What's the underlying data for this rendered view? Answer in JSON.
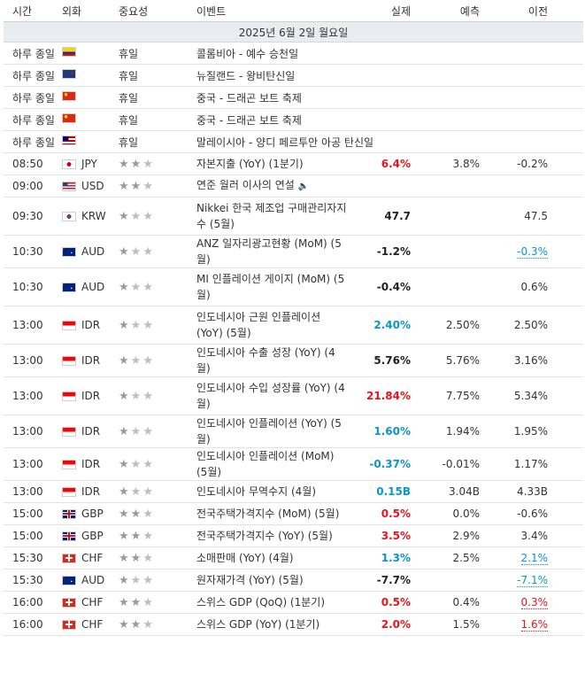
{
  "headers": {
    "time": "시간",
    "currency": "외화",
    "importance": "중요성",
    "event": "이벤트",
    "actual": "실제",
    "forecast": "예측",
    "previous": "이전"
  },
  "date_label": "2025년 6월 2일 월요일",
  "holidays": [
    {
      "time": "하루 종일",
      "flag": "colombia",
      "label": "휴일",
      "event": "콜롬비아 - 예수 승천일"
    },
    {
      "time": "하루 종일",
      "flag": "new-zealand",
      "label": "휴일",
      "event": "뉴질랜드 - 왕비탄신일"
    },
    {
      "time": "하루 종일",
      "flag": "china",
      "label": "휴일",
      "event": "중국 - 드래곤 보트 축제"
    },
    {
      "time": "하루 종일",
      "flag": "china",
      "label": "휴일",
      "event": "중국 - 드래곤 보트 축제"
    },
    {
      "time": "하루 종일",
      "flag": "malaysia",
      "label": "휴일",
      "event": "말레이시아 - 양디 페르투안 아공 탄신일"
    }
  ],
  "events": [
    {
      "time": "08:50",
      "flag": "japan",
      "currency": "JPY",
      "stars": 2,
      "event": "자본지출 (YoY) (1분기)",
      "actual": "6.4%",
      "actual_style": "pos",
      "forecast": "3.8%",
      "previous": "-0.2%",
      "prev_style": "",
      "speech": false
    },
    {
      "time": "09:00",
      "flag": "usa",
      "currency": "USD",
      "stars": 2,
      "event": "연준 월러 이사의 연설",
      "actual": "",
      "actual_style": "",
      "forecast": "",
      "previous": "",
      "prev_style": "",
      "speech": true
    },
    {
      "time": "09:30",
      "flag": "korea",
      "currency": "KRW",
      "stars": 1,
      "event": "Nikkei 한국 제조업 구매관리자지수 (5월)",
      "actual": "47.7",
      "actual_style": "neu",
      "forecast": "",
      "previous": "47.5",
      "prev_style": "",
      "speech": false
    },
    {
      "time": "10:30",
      "flag": "australia",
      "currency": "AUD",
      "stars": 1,
      "event": "ANZ 일자리광고현황 (MoM) (5월)",
      "actual": "-1.2%",
      "actual_style": "neu",
      "forecast": "",
      "previous": "-0.3%",
      "prev_style": "rev-b",
      "speech": false
    },
    {
      "time": "10:30",
      "flag": "australia",
      "currency": "AUD",
      "stars": 1,
      "event": "MI 인플레이션 게이지 (MoM) (5월)",
      "actual": "-0.4%",
      "actual_style": "neu",
      "forecast": "",
      "previous": "0.6%",
      "prev_style": "",
      "speech": false
    },
    {
      "time": "13:00",
      "flag": "indonesia",
      "currency": "IDR",
      "stars": 1,
      "event": "인도네시아 근원 인플레이션 (YoY) (5월)",
      "actual": "2.40%",
      "actual_style": "neg",
      "forecast": "2.50%",
      "previous": "2.50%",
      "prev_style": "",
      "speech": false
    },
    {
      "time": "13:00",
      "flag": "indonesia",
      "currency": "IDR",
      "stars": 1,
      "event": "인도네시아 수출 성장 (YoY) (4월)",
      "actual": "5.76%",
      "actual_style": "neu",
      "forecast": "5.76%",
      "previous": "3.16%",
      "prev_style": "",
      "speech": false
    },
    {
      "time": "13:00",
      "flag": "indonesia",
      "currency": "IDR",
      "stars": 1,
      "event": "인도네시아 수입 성장률 (YoY) (4월)",
      "actual": "21.84%",
      "actual_style": "pos",
      "forecast": "7.75%",
      "previous": "5.34%",
      "prev_style": "",
      "speech": false
    },
    {
      "time": "13:00",
      "flag": "indonesia",
      "currency": "IDR",
      "stars": 1,
      "event": "인도네시아 인플레이션 (YoY) (5월)",
      "actual": "1.60%",
      "actual_style": "neg",
      "forecast": "1.94%",
      "previous": "1.95%",
      "prev_style": "",
      "speech": false
    },
    {
      "time": "13:00",
      "flag": "indonesia",
      "currency": "IDR",
      "stars": 1,
      "event": "인도네시아 인플레이션 (MoM) (5월)",
      "actual": "-0.37%",
      "actual_style": "neg",
      "forecast": "-0.01%",
      "previous": "1.17%",
      "prev_style": "",
      "speech": false
    },
    {
      "time": "13:00",
      "flag": "indonesia",
      "currency": "IDR",
      "stars": 1,
      "event": "인도네시아 무역수지 (4월)",
      "actual": "0.15B",
      "actual_style": "neg",
      "forecast": "3.04B",
      "previous": "4.33B",
      "prev_style": "",
      "speech": false
    },
    {
      "time": "15:00",
      "flag": "uk",
      "currency": "GBP",
      "stars": 2,
      "event": "전국주택가격지수 (MoM) (5월)",
      "actual": "0.5%",
      "actual_style": "pos",
      "forecast": "0.0%",
      "previous": "-0.6%",
      "prev_style": "",
      "speech": false
    },
    {
      "time": "15:00",
      "flag": "uk",
      "currency": "GBP",
      "stars": 2,
      "event": "전국주택가격지수 (YoY) (5월)",
      "actual": "3.5%",
      "actual_style": "pos",
      "forecast": "2.9%",
      "previous": "3.4%",
      "prev_style": "",
      "speech": false
    },
    {
      "time": "15:30",
      "flag": "switzerland",
      "currency": "CHF",
      "stars": 2,
      "event": "소매판매 (YoY) (4월)",
      "actual": "1.3%",
      "actual_style": "neg",
      "forecast": "2.5%",
      "previous": "2.1%",
      "prev_style": "rev-b",
      "speech": false
    },
    {
      "time": "15:30",
      "flag": "australia",
      "currency": "AUD",
      "stars": 1,
      "event": "원자재가격 (YoY) (5월)",
      "actual": "-7.7%",
      "actual_style": "neu",
      "forecast": "",
      "previous": "-7.1%",
      "prev_style": "rev-b",
      "speech": false
    },
    {
      "time": "16:00",
      "flag": "switzerland",
      "currency": "CHF",
      "stars": 2,
      "event": "스위스 GDP (QoQ) (1분기)",
      "actual": "0.5%",
      "actual_style": "pos",
      "forecast": "0.4%",
      "previous": "0.3%",
      "prev_style": "rev-r",
      "speech": false
    },
    {
      "time": "16:00",
      "flag": "switzerland",
      "currency": "CHF",
      "stars": 2,
      "event": "스위스 GDP (YoY) (1분기)",
      "actual": "2.0%",
      "actual_style": "pos",
      "forecast": "1.5%",
      "previous": "1.6%",
      "prev_style": "rev-r",
      "speech": false
    }
  ],
  "colors": {
    "positive": "#e8131c",
    "negative": "#0b95cc",
    "date_row_bg": "#e9ecf0",
    "star_on": "#9a9a9a",
    "star_off": "#bdbdbd"
  },
  "icons": {
    "star": "star-icon",
    "speech": "speaker-icon"
  }
}
